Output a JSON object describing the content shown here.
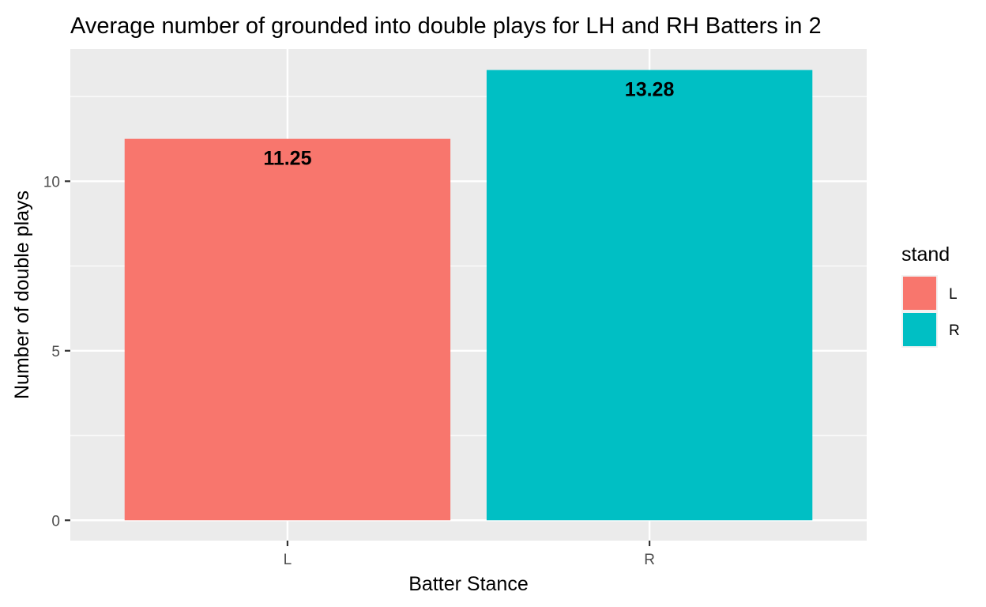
{
  "chart_data": {
    "type": "bar",
    "title": "Average number of grounded into double plays for LH and RH  Batters in 2",
    "xlabel": "Batter Stance",
    "ylabel": "Number of double plays",
    "categories": [
      "L",
      "R"
    ],
    "values": [
      11.25,
      13.28
    ],
    "data_labels": [
      "11.25",
      "13.28"
    ],
    "ylim": [
      -0.6,
      13.9
    ],
    "yticks": [
      0,
      5,
      10
    ],
    "ytick_labels": [
      "0",
      "5",
      "10"
    ],
    "grid": true,
    "colors": [
      "#F8766D",
      "#00BFC4"
    ],
    "panel_background": "#EBEBEB",
    "legend": {
      "title": "stand",
      "placement": "right",
      "entries": [
        "L",
        "R"
      ]
    }
  }
}
